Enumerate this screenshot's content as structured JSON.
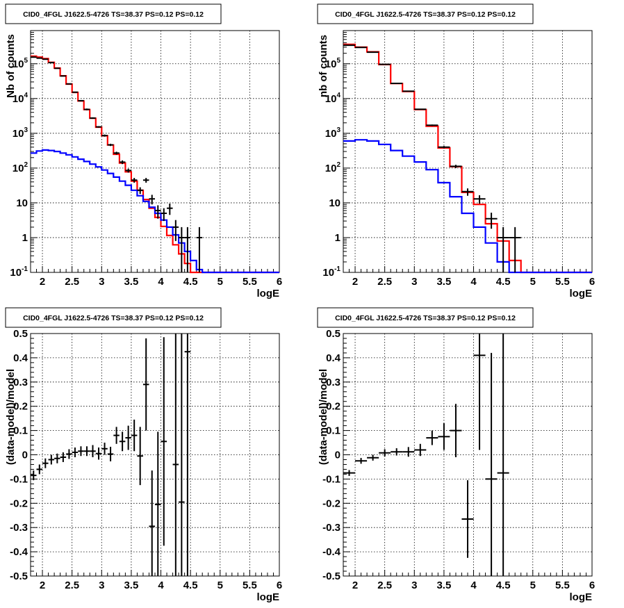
{
  "panel_title": "CID0_4FGL J1622.5-4726 TS=38.37 PS=0.12 PS=0.12",
  "chart_data": [
    {
      "type": "line",
      "title": "CID0_4FGL J1622.5-4726 TS=38.37 PS=0.12 PS=0.12",
      "xlabel": "logE",
      "ylabel": "Nb of counts",
      "xlim": [
        1.8,
        6.0
      ],
      "ylim": [
        0.1,
        900000
      ],
      "yscale": "log",
      "grid": true,
      "x_ticks": [
        "2",
        "2.5",
        "3",
        "3.5",
        "4",
        "4.5",
        "5",
        "5.5",
        "6"
      ],
      "y_ticks": [
        "10^{-1}",
        "1",
        "10",
        "10^{2}",
        "10^{3}",
        "10^{4}",
        "10^{5}"
      ],
      "bin_edges": [
        1.8,
        1.9,
        2.0,
        2.1,
        2.2,
        2.3,
        2.4,
        2.5,
        2.6,
        2.7,
        2.8,
        2.9,
        3.0,
        3.1,
        3.2,
        3.3,
        3.4,
        3.5,
        3.6,
        3.7,
        3.8,
        3.9,
        4.0,
        4.1,
        4.2,
        4.3,
        4.4,
        4.5,
        4.6,
        4.7,
        4.8,
        4.9,
        5.0,
        5.1,
        5.2,
        5.3,
        5.4,
        5.5,
        5.6,
        5.7,
        5.8,
        5.9,
        6.0
      ],
      "series": [
        {
          "color": "#ff0000",
          "style": "step",
          "values": [
            165000,
            155000,
            140000,
            110000,
            75000,
            45000,
            26000,
            15000,
            8500,
            4800,
            2700,
            1500,
            850,
            460,
            250,
            140,
            78,
            42,
            23,
            12.5,
            7,
            3.8,
            2.1,
            1.15,
            0.62,
            0.34,
            0.18,
            0.1,
            0.1,
            0.1,
            0.1,
            0.1,
            0.1,
            0.1,
            0.1,
            0.1,
            0.1,
            0.1,
            0.1,
            0.1,
            0.1,
            0.1
          ]
        },
        {
          "color": "#0000ff",
          "style": "step",
          "values": [
            270,
            310,
            330,
            320,
            300,
            270,
            240,
            210,
            180,
            155,
            130,
            108,
            88,
            70,
            55,
            42,
            32,
            23,
            16,
            11,
            7.5,
            5,
            3.2,
            2,
            1.2,
            0.7,
            0.4,
            0.22,
            0.12,
            0.1,
            0.1,
            0.1,
            0.1,
            0.1,
            0.1,
            0.1,
            0.1,
            0.1,
            0.1,
            0.1,
            0.1,
            0.1
          ]
        },
        {
          "color": "#000000",
          "style": "errorbar",
          "points": [
            {
              "x": 1.85,
              "y": 155000,
              "lo": 153000,
              "hi": 157000
            },
            {
              "x": 1.95,
              "y": 145000,
              "lo": 143000,
              "hi": 147000
            },
            {
              "x": 2.05,
              "y": 135000,
              "lo": 133000,
              "hi": 137000
            },
            {
              "x": 2.15,
              "y": 108000,
              "lo": 106000,
              "hi": 110000
            },
            {
              "x": 2.25,
              "y": 74000,
              "lo": 72000,
              "hi": 76000
            },
            {
              "x": 2.35,
              "y": 44500,
              "lo": 43500,
              "hi": 45500
            },
            {
              "x": 2.45,
              "y": 26300,
              "lo": 25500,
              "hi": 27100
            },
            {
              "x": 2.55,
              "y": 15200,
              "lo": 14700,
              "hi": 15700
            },
            {
              "x": 2.65,
              "y": 8650,
              "lo": 8300,
              "hi": 9000
            },
            {
              "x": 2.75,
              "y": 4870,
              "lo": 4600,
              "hi": 5140
            },
            {
              "x": 2.85,
              "y": 2740,
              "lo": 2600,
              "hi": 2880
            },
            {
              "x": 2.95,
              "y": 1530,
              "lo": 1450,
              "hi": 1610
            },
            {
              "x": 3.05,
              "y": 860,
              "lo": 800,
              "hi": 920
            },
            {
              "x": 3.15,
              "y": 465,
              "lo": 430,
              "hi": 500
            },
            {
              "x": 3.25,
              "y": 270,
              "lo": 245,
              "hi": 295
            },
            {
              "x": 3.35,
              "y": 148,
              "lo": 130,
              "hi": 166
            },
            {
              "x": 3.45,
              "y": 85,
              "lo": 74,
              "hi": 96
            },
            {
              "x": 3.55,
              "y": 45,
              "lo": 38,
              "hi": 52
            },
            {
              "x": 3.65,
              "y": 23,
              "lo": 18,
              "hi": 28
            },
            {
              "x": 3.75,
              "y": 45,
              "lo": 38,
              "hi": 52
            },
            {
              "x": 3.85,
              "y": 13,
              "lo": 9,
              "hi": 17
            },
            {
              "x": 3.95,
              "y": 6,
              "lo": 3.5,
              "hi": 8.5
            },
            {
              "x": 4.05,
              "y": 5,
              "lo": 3,
              "hi": 7
            },
            {
              "x": 4.15,
              "y": 7,
              "lo": 4.5,
              "hi": 9.5
            },
            {
              "x": 4.25,
              "y": 2,
              "lo": 0.8,
              "hi": 3.2
            },
            {
              "x": 4.35,
              "y": 1,
              "lo": 0.1,
              "hi": 2.0
            },
            {
              "x": 4.45,
              "y": 1,
              "lo": 0.1,
              "hi": 2.0
            },
            {
              "x": 4.65,
              "y": 1,
              "lo": 0.1,
              "hi": 2.0
            }
          ]
        }
      ]
    },
    {
      "type": "line",
      "title": "CID0_4FGL J1622.5-4726 TS=38.37 PS=0.12 PS=0.12",
      "xlabel": "logE",
      "ylabel": "nb of counts",
      "xlim": [
        1.8,
        6.0
      ],
      "ylim": [
        0.1,
        900000
      ],
      "yscale": "log",
      "grid": true,
      "x_ticks": [
        "2",
        "2.5",
        "3",
        "3.5",
        "4",
        "4.5",
        "5",
        "5.5",
        "6"
      ],
      "y_ticks": [
        "10^{-1}",
        "1",
        "10",
        "10^{2}",
        "10^{3}",
        "10^{4}",
        "10^{5}"
      ],
      "bin_edges": [
        1.8,
        2.0,
        2.2,
        2.4,
        2.6,
        2.8,
        3.0,
        3.2,
        3.4,
        3.6,
        3.8,
        4.0,
        4.2,
        4.4,
        4.6,
        4.8,
        5.0,
        5.2,
        5.4,
        5.6,
        5.8,
        6.0
      ],
      "series": [
        {
          "color": "#ff0000",
          "style": "step",
          "values": [
            360000,
            300000,
            220000,
            95000,
            27000,
            16000,
            4800,
            1600,
            380,
            110,
            20,
            9,
            2.5,
            0.8,
            0.22,
            0.1,
            0.1,
            0.1,
            0.1,
            0.1,
            0.1
          ]
        },
        {
          "color": "#0000ff",
          "style": "step",
          "values": [
            600,
            650,
            600,
            480,
            320,
            220,
            150,
            90,
            38,
            15,
            5,
            2,
            0.7,
            0.2,
            0.1,
            0.1,
            0.1,
            0.1,
            0.1,
            0.1,
            0.1
          ]
        },
        {
          "color": "#000000",
          "style": "errorbar",
          "points": [
            {
              "x": 1.9,
              "y": 340000,
              "lo": 338000,
              "hi": 342000
            },
            {
              "x": 2.1,
              "y": 295000,
              "lo": 293000,
              "hi": 297000
            },
            {
              "x": 2.3,
              "y": 215000,
              "lo": 213000,
              "hi": 217000
            },
            {
              "x": 2.5,
              "y": 96000,
              "lo": 95000,
              "hi": 97000
            },
            {
              "x": 2.7,
              "y": 27300,
              "lo": 26900,
              "hi": 27700
            },
            {
              "x": 2.9,
              "y": 16200,
              "lo": 15900,
              "hi": 16500
            },
            {
              "x": 3.1,
              "y": 4900,
              "lo": 4750,
              "hi": 5050
            },
            {
              "x": 3.3,
              "y": 1700,
              "lo": 1620,
              "hi": 1780
            },
            {
              "x": 3.5,
              "y": 400,
              "lo": 370,
              "hi": 430
            },
            {
              "x": 3.7,
              "y": 112,
              "lo": 100,
              "hi": 124
            },
            {
              "x": 3.9,
              "y": 21,
              "lo": 16,
              "hi": 26
            },
            {
              "x": 4.1,
              "y": 13,
              "lo": 9.5,
              "hi": 16.5
            },
            {
              "x": 4.3,
              "y": 3.5,
              "lo": 1.8,
              "hi": 5.2
            },
            {
              "x": 4.5,
              "y": 1.0,
              "lo": 0.1,
              "hi": 2.0
            },
            {
              "x": 4.7,
              "y": 1.0,
              "lo": 0.1,
              "hi": 2.0
            }
          ]
        }
      ]
    },
    {
      "type": "scatter",
      "title": "CID0_4FGL J1622.5-4726 TS=38.37 PS=0.12 PS=0.12",
      "xlabel": "logE",
      "ylabel": "(data-model)/model",
      "xlim": [
        1.8,
        6.0
      ],
      "ylim": [
        -0.5,
        0.5
      ],
      "grid": true,
      "x_ticks": [
        "2",
        "2.5",
        "3",
        "3.5",
        "4",
        "4.5",
        "5",
        "5.5",
        "6"
      ],
      "y_ticks": [
        "-0.5",
        "-0.4",
        "-0.3",
        "-0.2",
        "-0.1",
        "0",
        "0.1",
        "0.2",
        "0.3",
        "0.4",
        "0.5"
      ],
      "series": [
        {
          "color": "#000000",
          "style": "errorbar",
          "half_width": 0.05,
          "points": [
            {
              "x": 1.85,
              "y": -0.085,
              "err": 0.02
            },
            {
              "x": 1.95,
              "y": -0.06,
              "err": 0.02
            },
            {
              "x": 2.05,
              "y": -0.035,
              "err": 0.02
            },
            {
              "x": 2.15,
              "y": -0.02,
              "err": 0.02
            },
            {
              "x": 2.25,
              "y": -0.015,
              "err": 0.02
            },
            {
              "x": 2.35,
              "y": -0.01,
              "err": 0.02
            },
            {
              "x": 2.45,
              "y": 0.003,
              "err": 0.02
            },
            {
              "x": 2.55,
              "y": 0.01,
              "err": 0.02
            },
            {
              "x": 2.65,
              "y": 0.015,
              "err": 0.02
            },
            {
              "x": 2.75,
              "y": 0.015,
              "err": 0.02
            },
            {
              "x": 2.85,
              "y": 0.015,
              "err": 0.025
            },
            {
              "x": 2.95,
              "y": 0.005,
              "err": 0.025
            },
            {
              "x": 3.05,
              "y": 0.025,
              "err": 0.025
            },
            {
              "x": 3.15,
              "y": 0.003,
              "err": 0.03
            },
            {
              "x": 3.25,
              "y": 0.08,
              "err": 0.035
            },
            {
              "x": 3.35,
              "y": 0.055,
              "err": 0.04
            },
            {
              "x": 3.45,
              "y": 0.07,
              "err": 0.05
            },
            {
              "x": 3.55,
              "y": 0.08,
              "err": 0.065
            },
            {
              "x": 3.65,
              "y": -0.005,
              "err": 0.12
            },
            {
              "x": 3.75,
              "y": 0.29,
              "err": 0.19
            },
            {
              "x": 3.85,
              "y": -0.295,
              "err": 0.23
            },
            {
              "x": 3.95,
              "y": -0.205,
              "err": 0.3
            },
            {
              "x": 4.05,
              "y": 0.055,
              "err": 0.43
            },
            {
              "x": 4.25,
              "y": -0.04,
              "err": 0.6
            },
            {
              "x": 4.35,
              "y": -0.195,
              "err": 0.9
            },
            {
              "x": 4.45,
              "y": 0.425,
              "err": 0.95
            }
          ]
        }
      ]
    },
    {
      "type": "scatter",
      "title": "CID0_4FGL J1622.5-4726 TS=38.37 PS=0.12 PS=0.12",
      "xlabel": "logE",
      "ylabel": "(data-model)/model",
      "xlim": [
        1.8,
        6.0
      ],
      "ylim": [
        -0.5,
        0.5
      ],
      "grid": true,
      "x_ticks": [
        "2",
        "2.5",
        "3",
        "3.5",
        "4",
        "4.5",
        "5",
        "5.5",
        "6"
      ],
      "y_ticks": [
        "-0.5",
        "-0.4",
        "-0.3",
        "-0.2",
        "-0.1",
        "0",
        "0.1",
        "0.2",
        "0.3",
        "0.4",
        "0.5"
      ],
      "series": [
        {
          "color": "#000000",
          "style": "errorbar",
          "half_width": 0.1,
          "points": [
            {
              "x": 1.9,
              "y": -0.075,
              "err": 0.012
            },
            {
              "x": 2.1,
              "y": -0.025,
              "err": 0.012
            },
            {
              "x": 2.3,
              "y": -0.012,
              "err": 0.012
            },
            {
              "x": 2.5,
              "y": 0.008,
              "err": 0.015
            },
            {
              "x": 2.7,
              "y": 0.012,
              "err": 0.015
            },
            {
              "x": 2.9,
              "y": 0.012,
              "err": 0.02
            },
            {
              "x": 3.1,
              "y": 0.02,
              "err": 0.025
            },
            {
              "x": 3.3,
              "y": 0.07,
              "err": 0.03
            },
            {
              "x": 3.5,
              "y": 0.075,
              "err": 0.055
            },
            {
              "x": 3.7,
              "y": 0.1,
              "err": 0.11
            },
            {
              "x": 3.9,
              "y": -0.265,
              "err": 0.16
            },
            {
              "x": 4.1,
              "y": 0.41,
              "err": 0.39
            },
            {
              "x": 4.3,
              "y": -0.1,
              "err": 0.52
            },
            {
              "x": 4.5,
              "y": -0.075,
              "err": 0.9
            }
          ]
        }
      ]
    }
  ]
}
